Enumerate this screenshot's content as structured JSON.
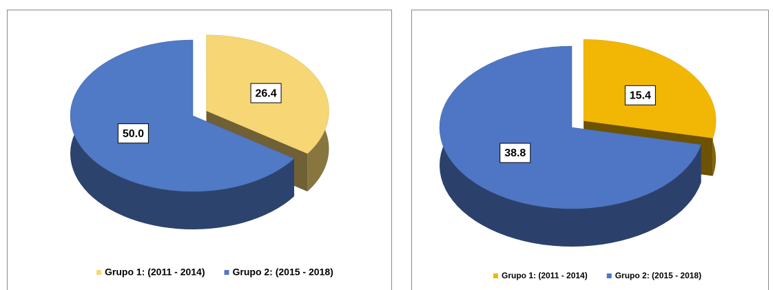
{
  "chart_data": [
    {
      "type": "pie",
      "categories": [
        "Grupo 1: (2011 - 2014)",
        "Grupo 2: (2015 - 2018)"
      ],
      "values": [
        26.4,
        50
      ],
      "value_labels": [
        "26.4",
        "50.0"
      ],
      "colors": [
        "#f6d675",
        "#5079c6"
      ]
    },
    {
      "type": "pie",
      "categories": [
        "Grupo 1: (2011 - 2014)",
        "Grupo 2: (2015 - 2018)"
      ],
      "values": [
        15.4,
        38.8
      ],
      "colors": [
        "#f2b705",
        "#4f76c4"
      ]
    }
  ]
}
